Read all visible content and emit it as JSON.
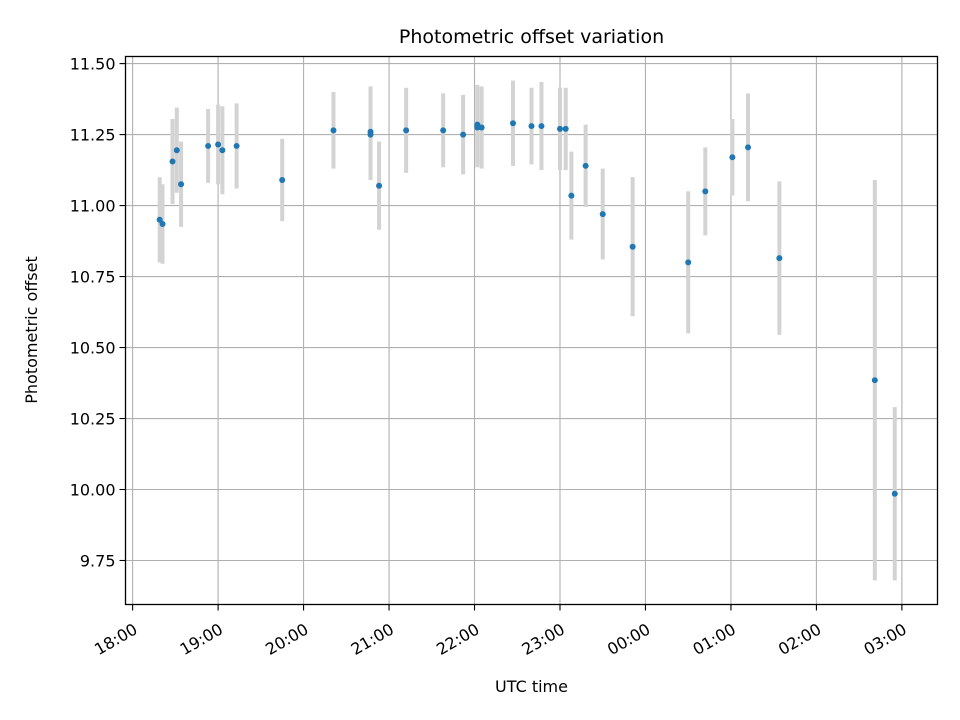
{
  "chart_data": {
    "type": "scatter",
    "title": "Photometric offset variation",
    "xlabel": "UTC time",
    "ylabel": "Photometric offset",
    "grid": true,
    "x_unit": "hours",
    "xlim": [
      "17:55",
      "03:25"
    ],
    "ylim": [
      9.595,
      11.525
    ],
    "x_ticks": [
      "18:00",
      "19:00",
      "20:00",
      "21:00",
      "22:00",
      "23:00",
      "00:00",
      "01:00",
      "02:00",
      "03:00"
    ],
    "y_ticks": [
      "9.75",
      "10.00",
      "10.25",
      "10.50",
      "10.75",
      "11.00",
      "11.25",
      "11.50"
    ],
    "colors": {
      "points": "#1f77b4",
      "error_bars": "#d3d3d3",
      "grid": "#b0b0b0"
    },
    "series": [
      {
        "x": [
          "18:19",
          "18:21",
          "18:28",
          "18:31",
          "18:34",
          "18:53",
          "19:00",
          "19:03",
          "19:13",
          "19:45",
          "20:21",
          "20:47",
          "20:47",
          "20:53",
          "21:12",
          "21:38",
          "21:52",
          "22:02",
          "22:02",
          "22:05",
          "22:27",
          "22:40",
          "22:47",
          "23:00",
          "23:04",
          "23:08",
          "23:18",
          "23:30",
          "23:51",
          "00:30",
          "00:42",
          "01:01",
          "01:12",
          "01:34",
          "02:41",
          "02:55"
        ],
        "y": [
          10.95,
          10.935,
          11.155,
          11.195,
          11.075,
          11.21,
          11.215,
          11.195,
          11.21,
          11.09,
          11.265,
          11.26,
          11.25,
          11.07,
          11.265,
          11.265,
          11.25,
          11.285,
          11.275,
          11.275,
          11.29,
          11.28,
          11.28,
          11.27,
          11.27,
          11.035,
          11.14,
          10.97,
          10.855,
          10.8,
          11.05,
          11.17,
          11.205,
          10.815,
          10.385,
          9.985
        ],
        "yerr": [
          0.15,
          0.14,
          0.15,
          0.15,
          0.15,
          0.13,
          0.14,
          0.155,
          0.15,
          0.145,
          0.135,
          0.16,
          0.16,
          0.155,
          0.15,
          0.13,
          0.14,
          0.14,
          0.14,
          0.145,
          0.15,
          0.135,
          0.155,
          0.145,
          0.145,
          0.155,
          0.145,
          0.16,
          0.245,
          0.25,
          0.155,
          0.135,
          0.19,
          0.27,
          0.705,
          0.305
        ]
      }
    ]
  }
}
